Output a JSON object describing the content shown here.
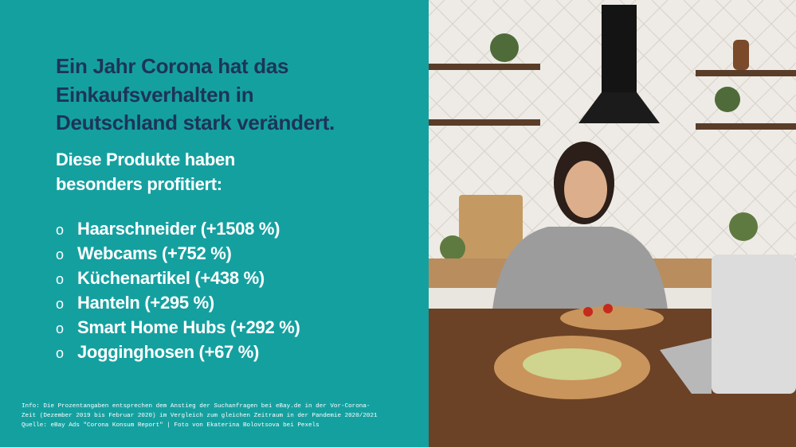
{
  "header": {
    "title": [
      "Ein Jahr Corona hat das",
      "Einkaufsverhalten in",
      "Deutschland stark verändert."
    ],
    "subtitle": [
      "Diese Produkte haben",
      "besonders profitiert:"
    ]
  },
  "list": {
    "items": [
      "Haarschneider (+1508 %)",
      "Webcams (+752 %)",
      "Küchenartikel (+438 %)",
      "Hanteln (+295 %)",
      "Smart Home Hubs (+292 %)",
      "Jogginghosen (+67 %)"
    ]
  },
  "footnote": [
    "Info: Die Prozentangaben entsprechen dem Anstieg der Suchanfragen bei eBay.de in der Vor-Corona-",
    "Zeit (Dezember 2019 bis Februar 2020) im Vergleich zum gleichen Zeitraum in der Pandemie 2020/2021",
    "Quelle: eBay Ads \"Corona Konsum Report\" | Foto von Ekaterina Bolovtsova bei Pexels"
  ]
}
